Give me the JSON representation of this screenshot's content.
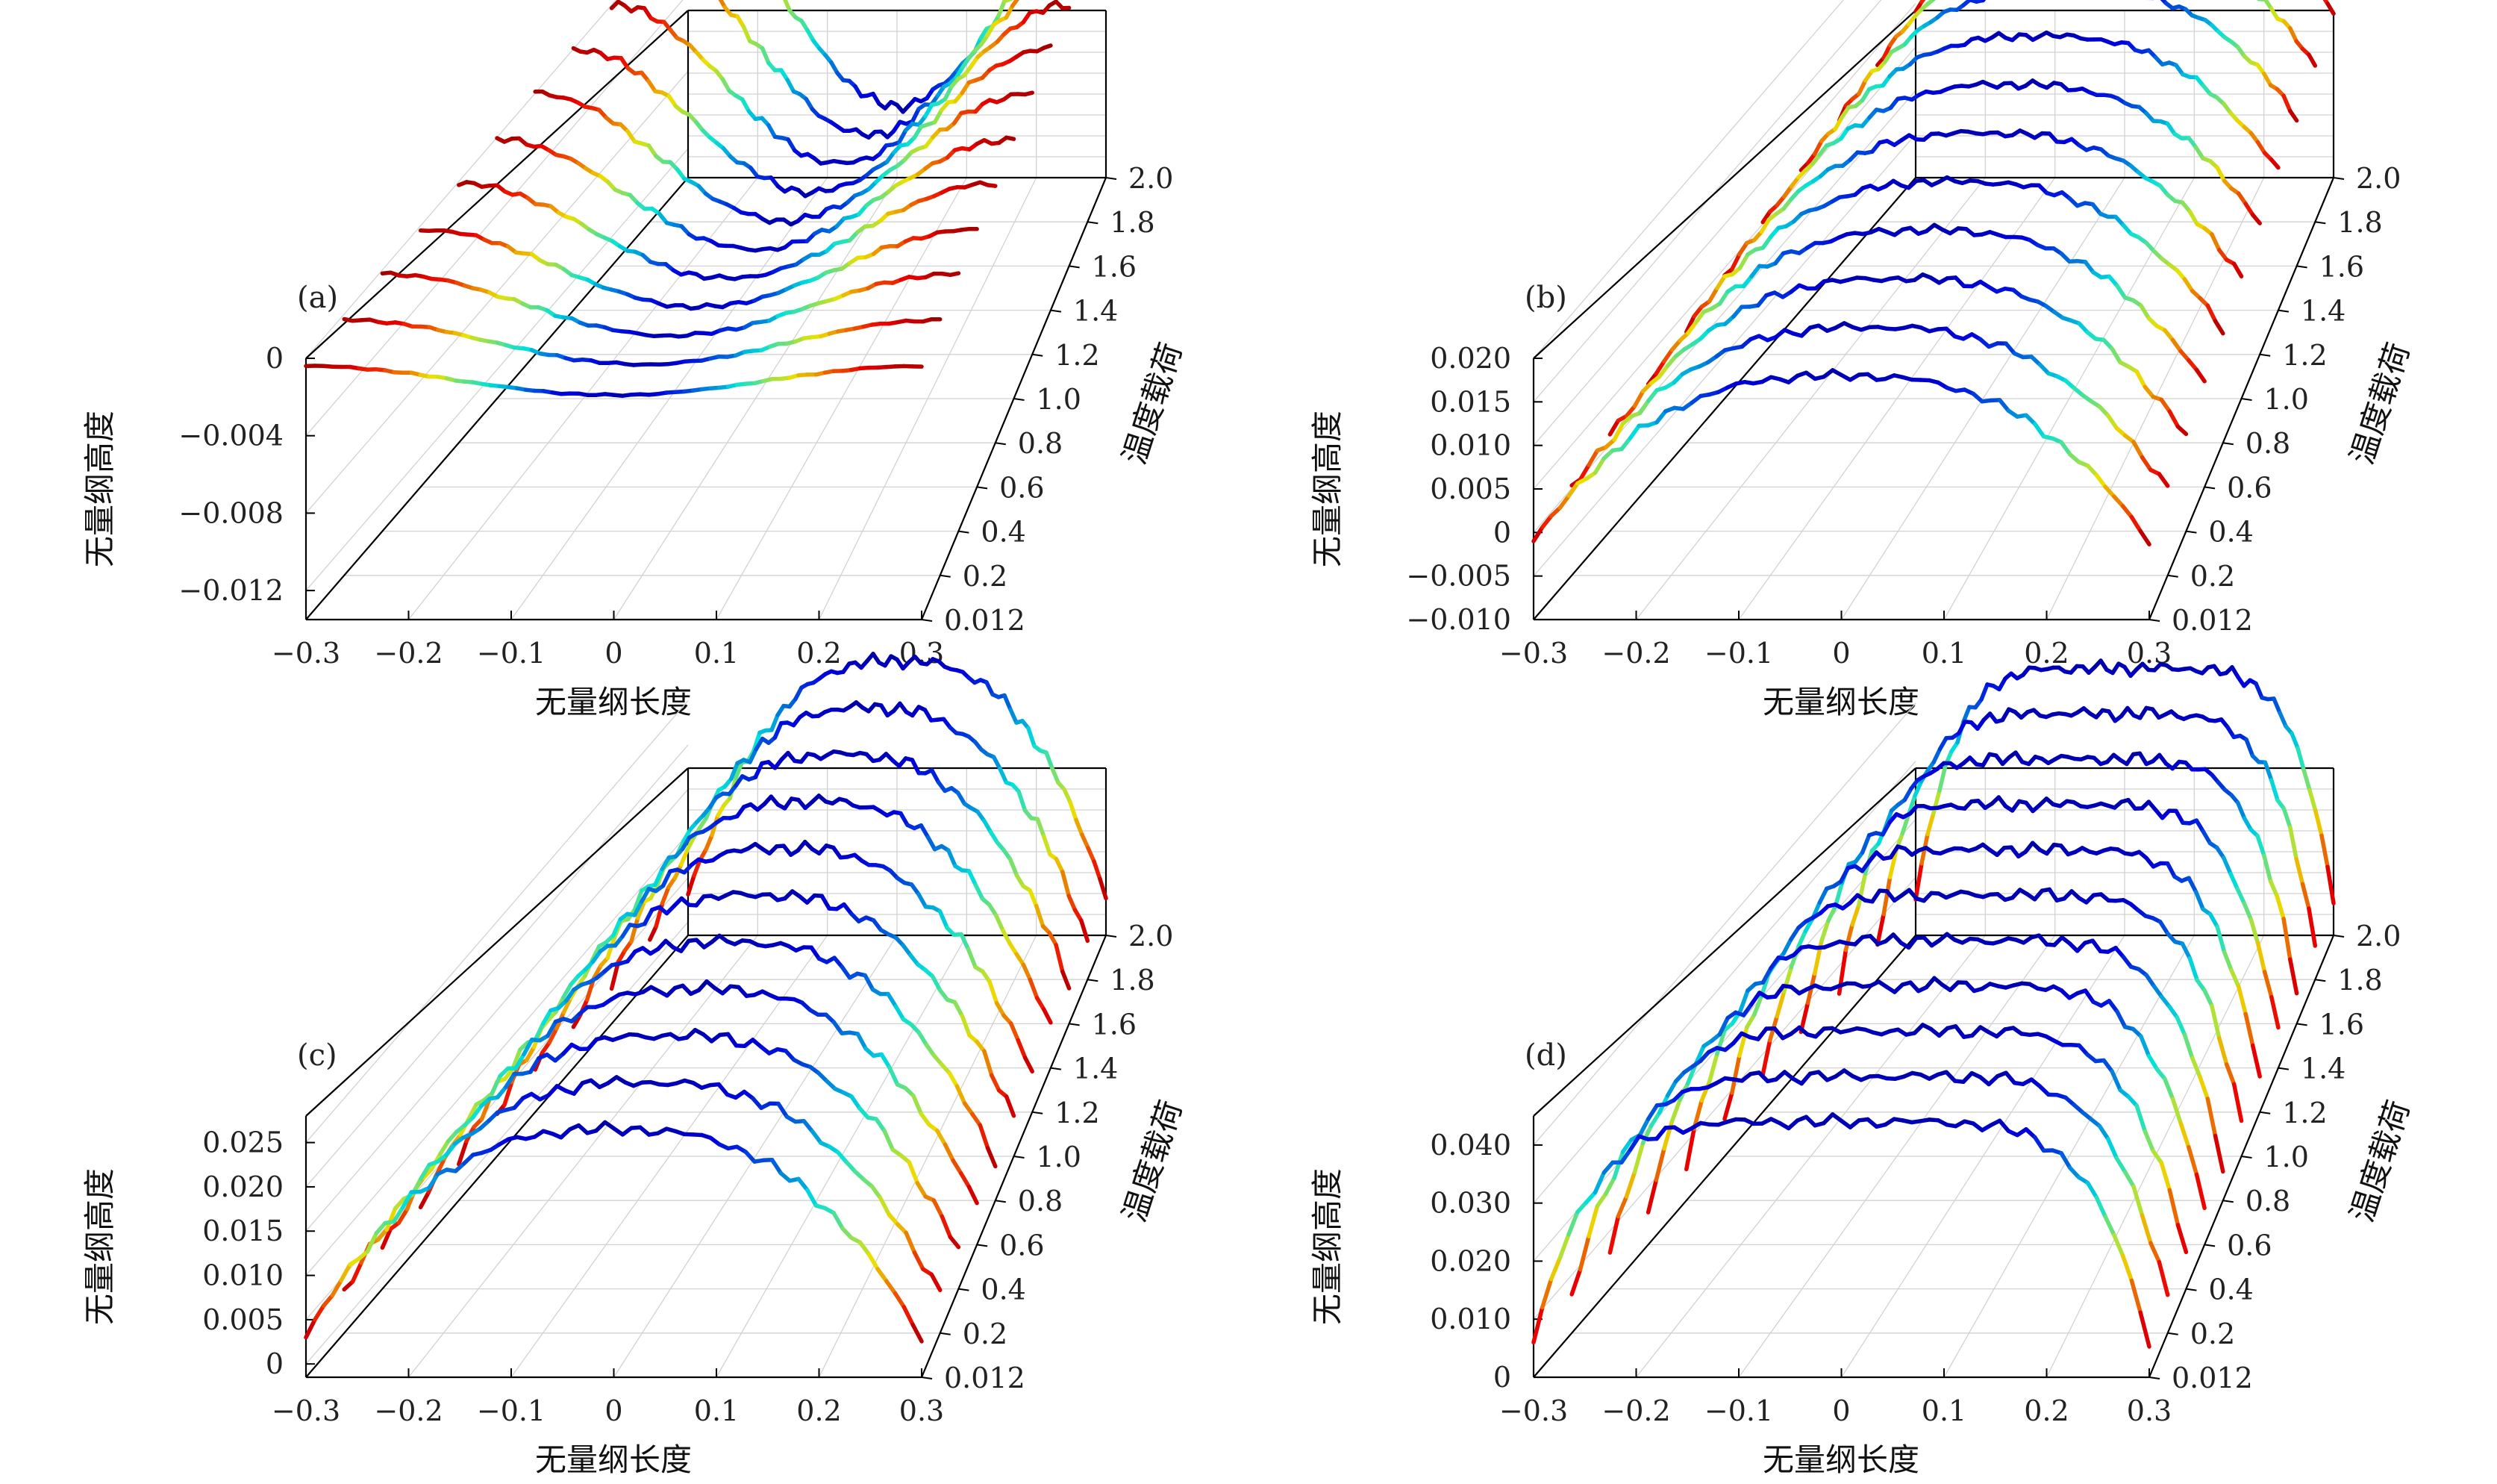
{
  "chart_data": [
    {
      "type": "line",
      "panel_label": "(a)",
      "title": "",
      "xlabel": "无量纲长度",
      "ylabel": "温度载荷",
      "zlabel": "无量纲高度",
      "x_ticks": [
        "−0.3",
        "−0.2",
        "−0.1",
        "0",
        "0.1",
        "0.2",
        "0.3"
      ],
      "xlim": [
        -0.3,
        0.3
      ],
      "y_ticks": [
        "0.012",
        "0.2",
        "0.4",
        "0.6",
        "0.8",
        "1.0",
        "1.2",
        "1.4",
        "1.6",
        "1.8",
        "2.0"
      ],
      "z_ticks": [
        "0",
        "−0.004",
        "−0.008",
        "−0.012"
      ],
      "z_tick_values": [
        0,
        -0.004,
        -0.008,
        -0.012
      ],
      "zlim": [
        -0.0135,
        0.0
      ],
      "series_name_template": "温度载荷",
      "curve_shape": "valley",
      "series": [
        {
          "name": "0.012",
          "z_min": -0.0019,
          "z_max": -0.0004
        },
        {
          "name": "0.2",
          "z_min": -0.0026,
          "z_max": -0.0003
        },
        {
          "name": "0.4",
          "z_min": -0.0034,
          "z_max": -0.0002
        },
        {
          "name": "0.6",
          "z_min": -0.0042,
          "z_max": -0.0002
        },
        {
          "name": "0.8",
          "z_min": -0.005,
          "z_max": -0.0001
        },
        {
          "name": "1.0",
          "z_min": -0.0058,
          "z_max": -0.0001
        },
        {
          "name": "1.2",
          "z_min": -0.0066,
          "z_max": 0.0
        },
        {
          "name": "1.4",
          "z_min": -0.0074,
          "z_max": 0.0
        },
        {
          "name": "1.6",
          "z_min": -0.0082,
          "z_max": 0.0
        },
        {
          "name": "1.8",
          "z_min": -0.009,
          "z_max": 0.0
        },
        {
          "name": "2.0",
          "z_min": -0.0098,
          "z_max": 0.0
        }
      ]
    },
    {
      "type": "line",
      "panel_label": "(b)",
      "title": "",
      "xlabel": "无量纲长度",
      "ylabel": "温度载荷",
      "zlabel": "无量纲高度",
      "x_ticks": [
        "−0.3",
        "−0.2",
        "−0.1",
        "0",
        "0.1",
        "0.2",
        "0.3"
      ],
      "xlim": [
        -0.3,
        0.3
      ],
      "y_ticks": [
        "0.012",
        "0.2",
        "0.4",
        "0.6",
        "0.8",
        "1.0",
        "1.2",
        "1.4",
        "1.6",
        "1.8",
        "2.0"
      ],
      "z_ticks": [
        "0.020",
        "0.015",
        "0.010",
        "0.005",
        "0",
        "−0.005",
        "−0.010"
      ],
      "z_tick_values": [
        0.02,
        0.015,
        0.01,
        0.005,
        0,
        -0.005,
        -0.01
      ],
      "zlim": [
        -0.01,
        0.02
      ],
      "series_name_template": "温度载荷",
      "curve_shape": "dome",
      "series": [
        {
          "name": "0.012",
          "z_min": -0.001,
          "z_max": 0.018
        },
        {
          "name": "0.2",
          "z_min": 0.0,
          "z_max": 0.0185
        },
        {
          "name": "0.4",
          "z_min": 0.001,
          "z_max": 0.019
        },
        {
          "name": "0.6",
          "z_min": 0.002,
          "z_max": 0.0195
        },
        {
          "name": "0.8",
          "z_min": 0.003,
          "z_max": 0.02
        },
        {
          "name": "1.0",
          "z_min": 0.004,
          "z_max": 0.0205
        },
        {
          "name": "1.2",
          "z_min": 0.005,
          "z_max": 0.021
        },
        {
          "name": "1.4",
          "z_min": 0.006,
          "z_max": 0.0215
        },
        {
          "name": "1.6",
          "z_min": 0.007,
          "z_max": 0.022
        },
        {
          "name": "1.8",
          "z_min": 0.008,
          "z_max": 0.0225
        },
        {
          "name": "2.0",
          "z_min": 0.009,
          "z_max": 0.023
        }
      ]
    },
    {
      "type": "line",
      "panel_label": "(c)",
      "title": "",
      "xlabel": "无量纲长度",
      "ylabel": "温度载荷",
      "zlabel": "无量纲高度",
      "x_ticks": [
        "−0.3",
        "−0.2",
        "−0.1",
        "0",
        "0.1",
        "0.2",
        "0.3"
      ],
      "xlim": [
        -0.3,
        0.3
      ],
      "y_ticks": [
        "0.012",
        "0.2",
        "0.4",
        "0.6",
        "0.8",
        "1.0",
        "1.2",
        "1.4",
        "1.6",
        "1.8",
        "2.0"
      ],
      "z_ticks": [
        "0.025",
        "0.020",
        "0.015",
        "0.010",
        "0.005",
        "0"
      ],
      "z_tick_values": [
        0.025,
        0.02,
        0.015,
        0.01,
        0.005,
        0
      ],
      "zlim": [
        -0.0015,
        0.028
      ],
      "series_name_template": "温度载荷",
      "curve_shape": "dome",
      "series": [
        {
          "name": "0.012",
          "z_min": 0.003,
          "z_max": 0.0265
        },
        {
          "name": "0.2",
          "z_min": 0.003,
          "z_max": 0.0268
        },
        {
          "name": "0.4",
          "z_min": 0.003,
          "z_max": 0.0271
        },
        {
          "name": "0.6",
          "z_min": 0.003,
          "z_max": 0.0274
        },
        {
          "name": "0.8",
          "z_min": 0.003,
          "z_max": 0.0277
        },
        {
          "name": "1.0",
          "z_min": 0.003,
          "z_max": 0.028
        },
        {
          "name": "1.2",
          "z_min": 0.003,
          "z_max": 0.0283
        },
        {
          "name": "1.4",
          "z_min": 0.003,
          "z_max": 0.0286
        },
        {
          "name": "1.6",
          "z_min": 0.003,
          "z_max": 0.0289
        },
        {
          "name": "1.8",
          "z_min": 0.003,
          "z_max": 0.0292
        },
        {
          "name": "2.0",
          "z_min": 0.003,
          "z_max": 0.0295
        }
      ]
    },
    {
      "type": "line",
      "panel_label": "(d)",
      "title": "",
      "xlabel": "无量纲长度",
      "ylabel": "温度载荷",
      "zlabel": "无量纲高度",
      "x_ticks": [
        "−0.3",
        "−0.2",
        "−0.1",
        "0",
        "0.1",
        "0.2",
        "0.3"
      ],
      "xlim": [
        -0.3,
        0.3
      ],
      "y_ticks": [
        "0.012",
        "0.2",
        "0.4",
        "0.6",
        "0.8",
        "1.0",
        "1.2",
        "1.4",
        "1.6",
        "1.8",
        "2.0"
      ],
      "z_ticks": [
        "0.040",
        "0.030",
        "0.020",
        "0.010",
        "0"
      ],
      "z_tick_values": [
        0.04,
        0.03,
        0.02,
        0.01,
        0
      ],
      "zlim": [
        0,
        0.045
      ],
      "series_name_template": "温度载荷",
      "curve_shape": "plateau",
      "series": [
        {
          "name": "0.012",
          "z_min": 0.006,
          "z_max": 0.044
        },
        {
          "name": "0.2",
          "z_min": 0.006,
          "z_max": 0.0442
        },
        {
          "name": "0.4",
          "z_min": 0.006,
          "z_max": 0.0444
        },
        {
          "name": "0.6",
          "z_min": 0.006,
          "z_max": 0.0446
        },
        {
          "name": "0.8",
          "z_min": 0.006,
          "z_max": 0.0448
        },
        {
          "name": "1.0",
          "z_min": 0.006,
          "z_max": 0.045
        },
        {
          "name": "1.2",
          "z_min": 0.006,
          "z_max": 0.0452
        },
        {
          "name": "1.4",
          "z_min": 0.006,
          "z_max": 0.0454
        },
        {
          "name": "1.6",
          "z_min": 0.006,
          "z_max": 0.0456
        },
        {
          "name": "1.8",
          "z_min": 0.006,
          "z_max": 0.0458
        },
        {
          "name": "2.0",
          "z_min": 0.006,
          "z_max": 0.046
        }
      ]
    }
  ],
  "colors": {
    "colormap": "jet",
    "frame": "#000000",
    "grid": "#d2d2d2",
    "background": "#ffffff"
  }
}
